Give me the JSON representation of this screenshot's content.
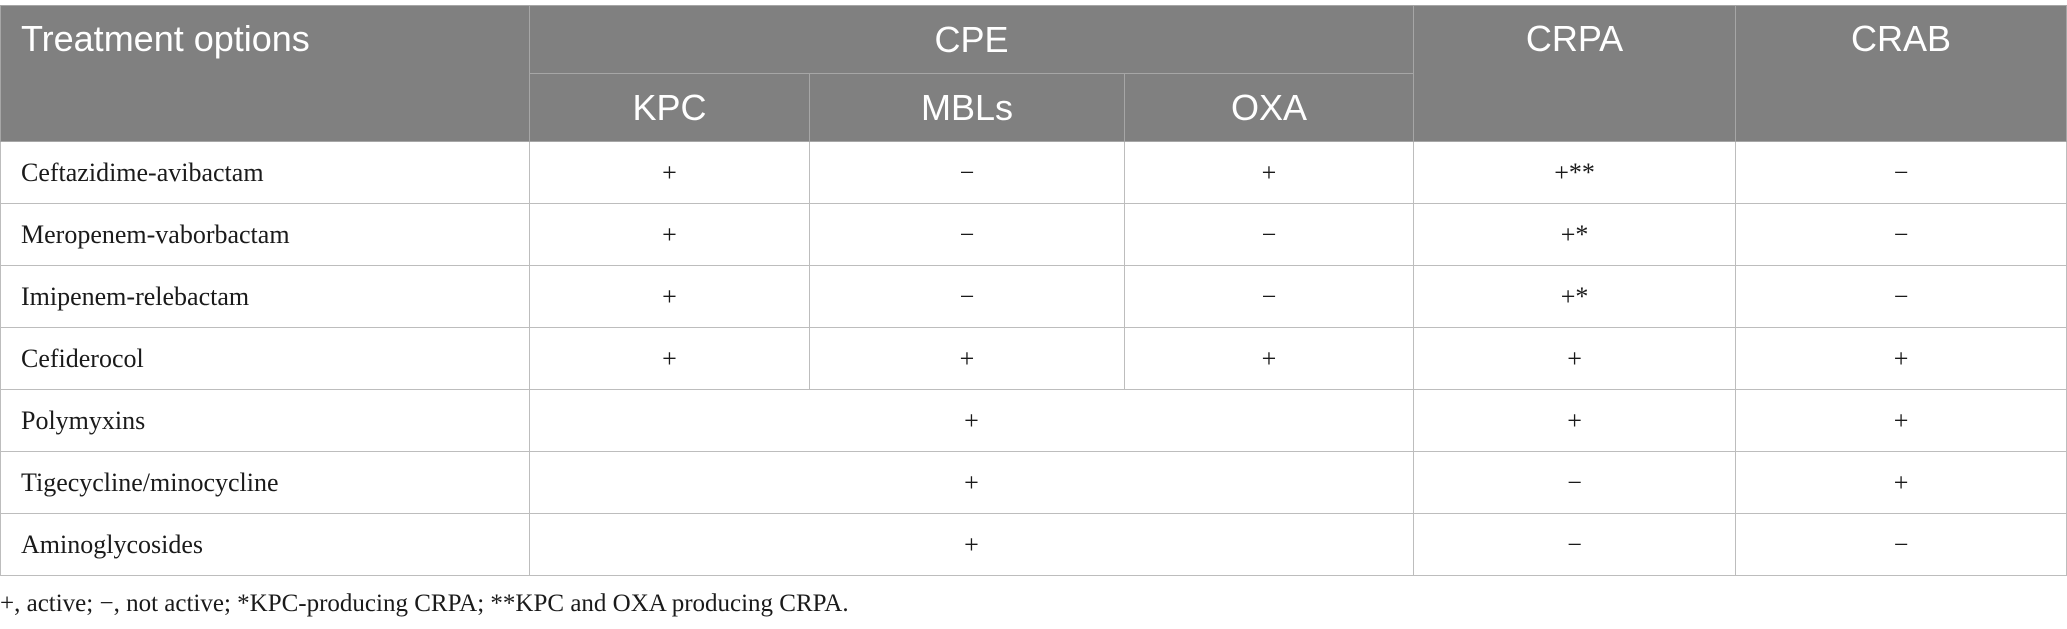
{
  "headers": {
    "treatment": "Treatment options",
    "cpe": "CPE",
    "crpa": "CRPA",
    "crab": "CRAB",
    "kpc": "KPC",
    "mbls": "MBLs",
    "oxa": "OXA"
  },
  "rows": [
    {
      "name": "Ceftazidime-avibactam",
      "kpc": "+",
      "mbls": "−",
      "oxa": "+",
      "crpa": "+**",
      "crab": "−"
    },
    {
      "name": "Meropenem-vaborbactam",
      "kpc": "+",
      "mbls": "−",
      "oxa": "−",
      "crpa": "+*",
      "crab": "−"
    },
    {
      "name": "Imipenem-relebactam",
      "kpc": "+",
      "mbls": "−",
      "oxa": "−",
      "crpa": "+*",
      "crab": "−"
    },
    {
      "name": "Cefiderocol",
      "kpc": "+",
      "mbls": "+",
      "oxa": "+",
      "crpa": "+",
      "crab": "+"
    },
    {
      "name": "Polymyxins",
      "cpe": "+",
      "crpa": "+",
      "crab": "+"
    },
    {
      "name": "Tigecycline/minocycline",
      "cpe": "+",
      "crpa": "−",
      "crab": "+"
    },
    {
      "name": "Aminoglycosides",
      "cpe": "+",
      "crpa": "−",
      "crab": "−"
    }
  ],
  "footnote": "+, active; −, not active; *KPC-producing CRPA; **KPC and OXA producing CRPA.",
  "colors": {
    "header_bg": "#808080",
    "header_text": "#ffffff",
    "grid": "#bdbdbd"
  }
}
